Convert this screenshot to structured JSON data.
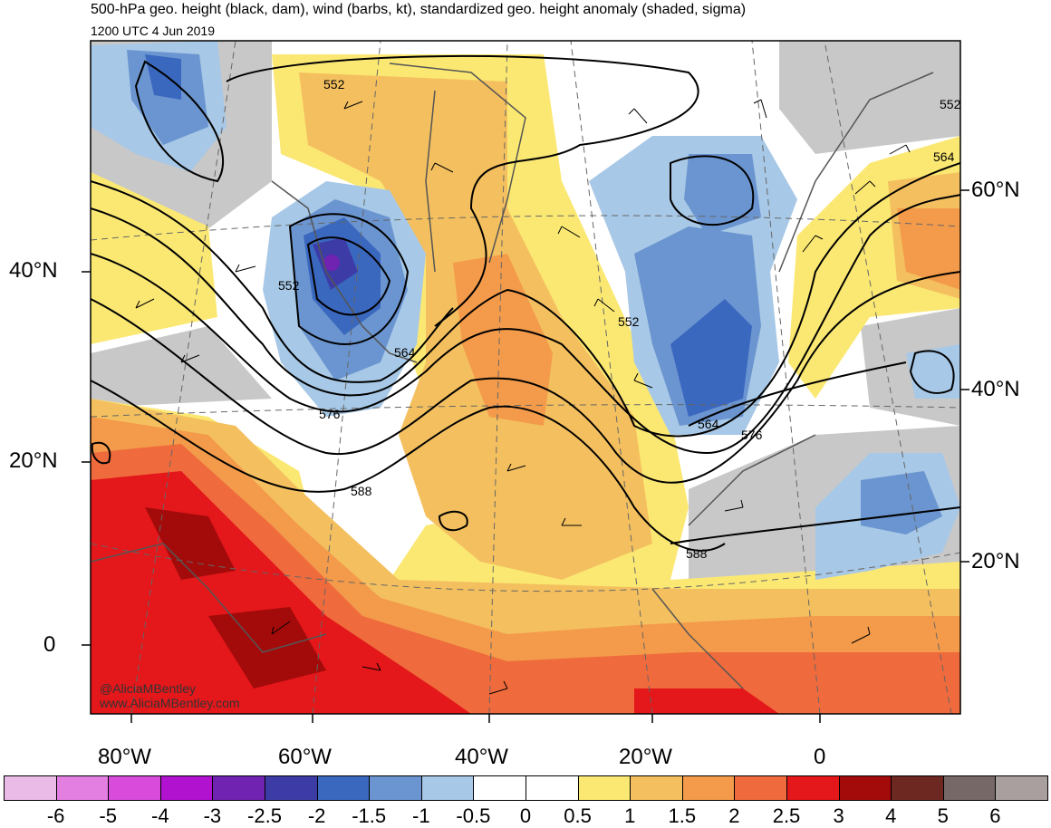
{
  "header": {
    "title": "500-hPa geo. height (black, dam), wind (barbs, kt), standardized geo. height anomaly (shaded, sigma)",
    "valid_time": "1200 UTC 4 Jun 2019"
  },
  "map": {
    "left_lat_labels": [
      "40°N",
      "20°N",
      "0"
    ],
    "right_lat_labels": [
      "60°N",
      "40°N",
      "20°N"
    ],
    "lon_labels": [
      "80°W",
      "60°W",
      "40°W",
      "20°W",
      "0"
    ],
    "contour_labels": [
      "552",
      "552",
      "552",
      "552",
      "564",
      "564",
      "564",
      "576",
      "576",
      "588",
      "588"
    ],
    "credits": [
      "@AliciaMBentley",
      "www.AliciaMBentley.com"
    ]
  },
  "colorbar": {
    "colors": [
      "#ebbbe8",
      "#e47fe2",
      "#d84bdb",
      "#b112d0",
      "#6f23b0",
      "#3d3ca6",
      "#3b68bf",
      "#6b95d0",
      "#a7c8e6",
      "#ffffff",
      "#ffffff",
      "#fbe873",
      "#f4c05f",
      "#f39b4a",
      "#ef6a3c",
      "#e4171a",
      "#a30b0b",
      "#6e2822",
      "#766866",
      "#a99f9e"
    ],
    "ticks": [
      "-6",
      "-5",
      "-4",
      "-3",
      "-2.5",
      "-2",
      "-1.5",
      "-1",
      "-0.5",
      "0",
      "0.5",
      "1",
      "1.5",
      "2",
      "2.5",
      "3",
      "4",
      "5",
      "6"
    ]
  }
}
